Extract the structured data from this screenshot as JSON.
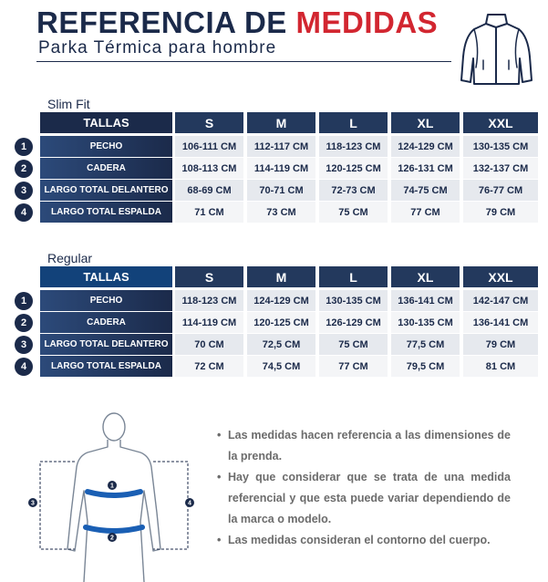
{
  "header": {
    "title_main": "REFERENCIA DE ",
    "title_accent": "MEDIDAS",
    "subtitle": "Parka Térmica  para hombre"
  },
  "colors": {
    "navy": "#1b2a4a",
    "accent_red": "#d22630",
    "cell_light": "#e6e9ee"
  },
  "tables": [
    {
      "label": "Slim Fit",
      "tallas": "TALLAS",
      "sizes": [
        "S",
        "M",
        "L",
        "XL",
        "XXL"
      ],
      "rows": [
        {
          "num": "1",
          "label": "PECHO",
          "values": [
            "106-111 CM",
            "112-117 CM",
            "118-123 CM",
            "124-129 CM",
            "130-135 CM"
          ]
        },
        {
          "num": "2",
          "label": "CADERA",
          "values": [
            "108-113 CM",
            "114-119 CM",
            "120-125 CM",
            "126-131 CM",
            "132-137 CM"
          ]
        },
        {
          "num": "3",
          "label": "LARGO TOTAL DELANTERO",
          "values": [
            "68-69 CM",
            "70-71 CM",
            "72-73 CM",
            "74-75 CM",
            "76-77 CM"
          ]
        },
        {
          "num": "4",
          "label": "LARGO TOTAL ESPALDA",
          "values": [
            "71 CM",
            "73 CM",
            "75 CM",
            "77 CM",
            "79 CM"
          ]
        }
      ]
    },
    {
      "label": "Regular",
      "tallas": "TALLAS",
      "sizes": [
        "S",
        "M",
        "L",
        "XL",
        "XXL"
      ],
      "rows": [
        {
          "num": "1",
          "label": "PECHO",
          "values": [
            "118-123 CM",
            "124-129 CM",
            "130-135 CM",
            "136-141 CM",
            "142-147 CM"
          ]
        },
        {
          "num": "2",
          "label": "CADERA",
          "values": [
            "114-119 CM",
            "120-125 CM",
            "126-129 CM",
            "130-135 CM",
            "136-141 CM"
          ]
        },
        {
          "num": "3",
          "label": "LARGO TOTAL DELANTERO",
          "values": [
            "70 CM",
            "72,5 CM",
            "75 CM",
            "77,5 CM",
            "79 CM"
          ]
        },
        {
          "num": "4",
          "label": "LARGO TOTAL ESPALDA",
          "values": [
            "72 CM",
            "74,5 CM",
            "77 CM",
            "79,5 CM",
            "81 CM"
          ]
        }
      ]
    }
  ],
  "figure": {
    "markers": [
      "1",
      "2",
      "3",
      "4"
    ]
  },
  "notes": [
    "Las medidas hacen referencia a las dimensiones de la prenda.",
    "Hay que considerar que se trata de una medida referencial y que esta puede variar dependiendo de la marca o modelo.",
    "Las medidas consideran el contorno del cuerpo."
  ],
  "icons": {
    "garment": "jacket-icon",
    "body": "body-figure",
    "bullet": "•"
  }
}
